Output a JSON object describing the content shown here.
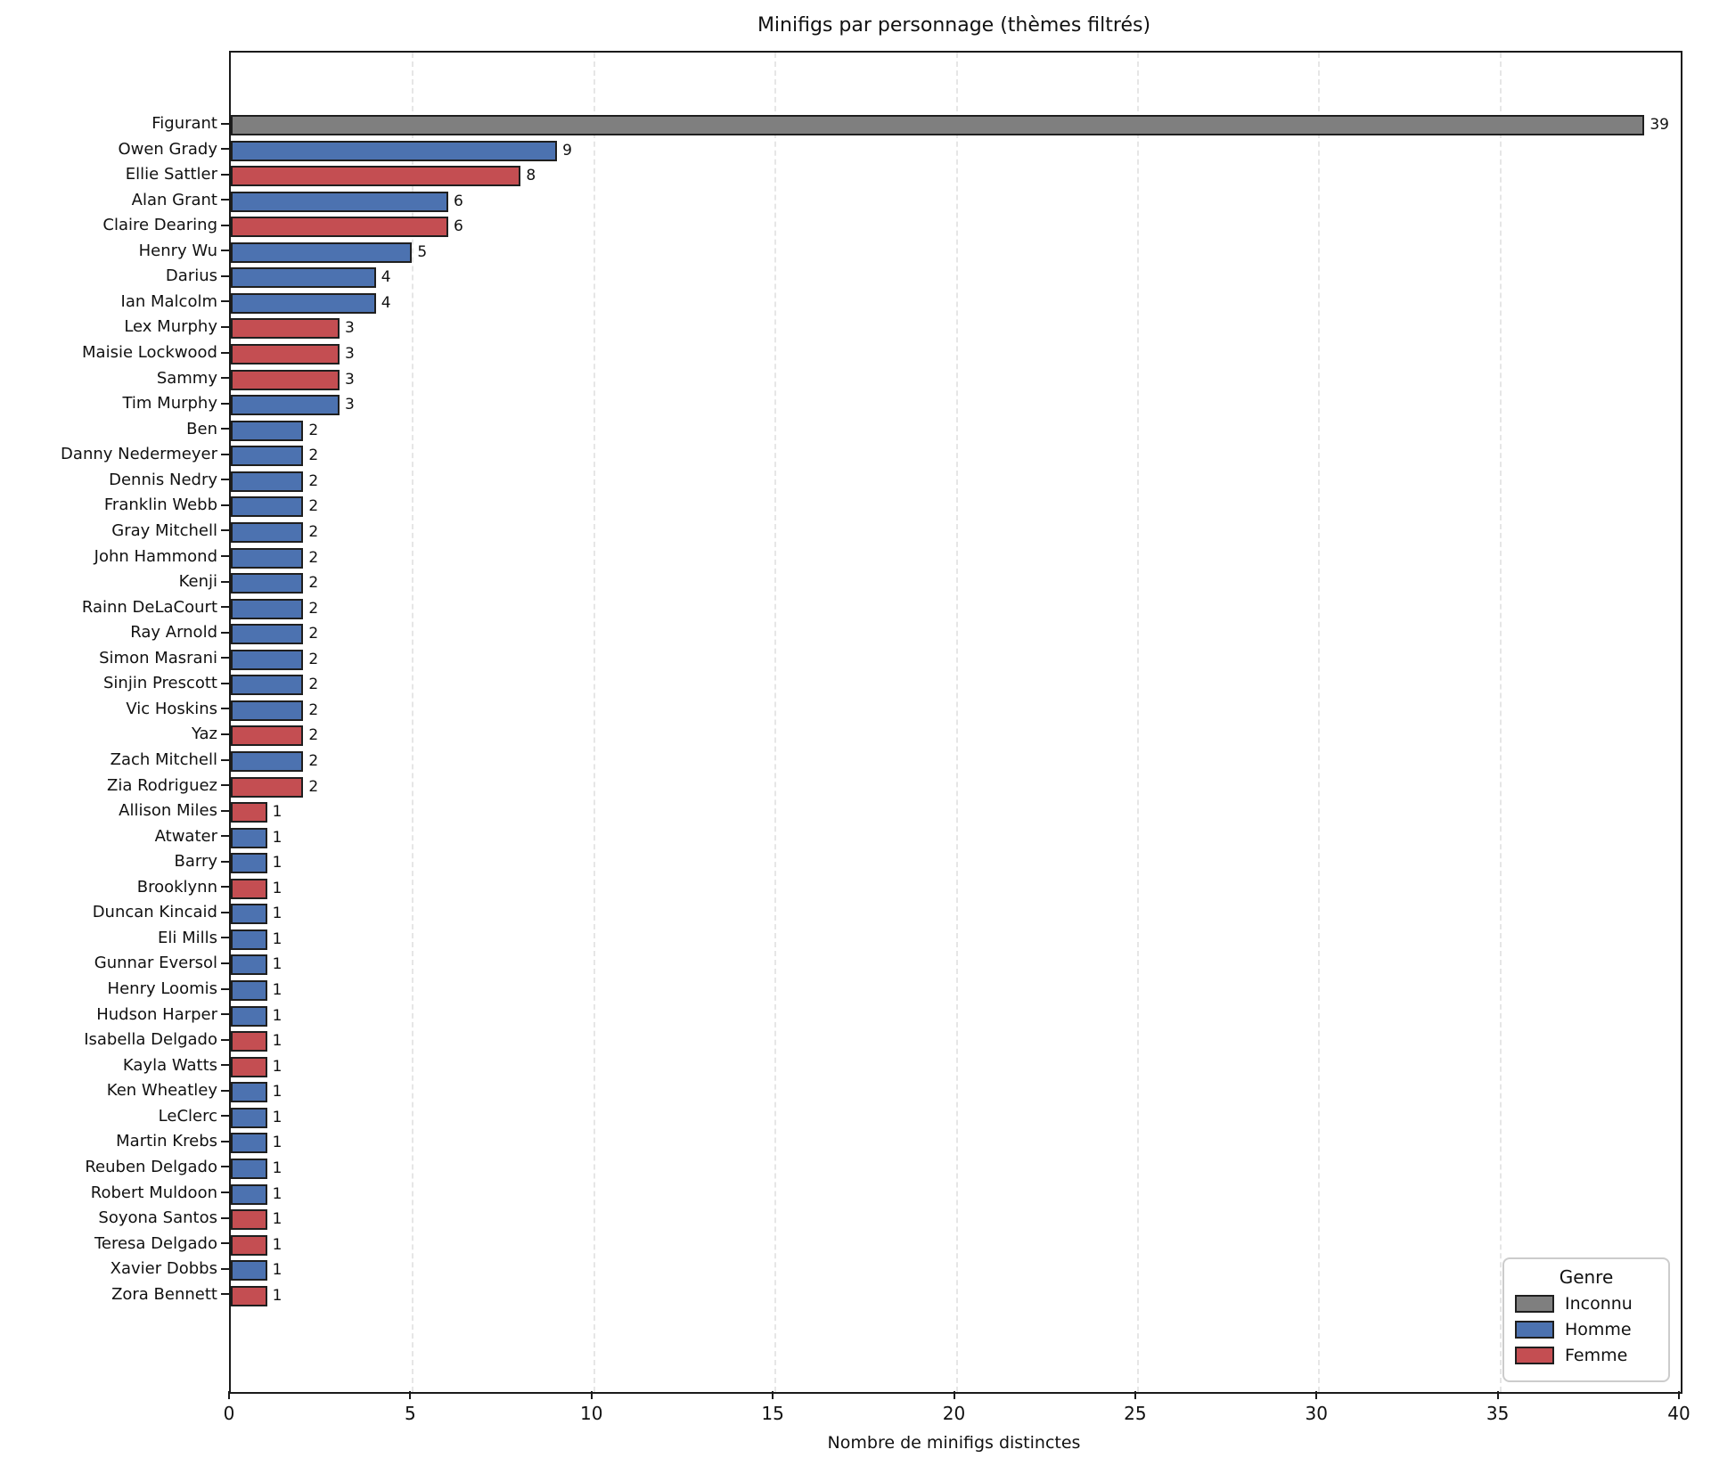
{
  "chart_data": {
    "type": "bar",
    "orientation": "horizontal",
    "title": "Minifigs par personnage (thèmes filtrés)",
    "xlabel": "Nombre de minifigs distinctes",
    "ylabel": "",
    "xlim": [
      0,
      40
    ],
    "x_ticks": [
      0,
      5,
      10,
      15,
      20,
      25,
      30,
      35,
      40
    ],
    "grid": "vertical-dashed",
    "bar_value_labels_shown": true,
    "categories": [
      "Figurant",
      "Owen Grady",
      "Ellie Sattler",
      "Alan Grant",
      "Claire Dearing",
      "Henry Wu",
      "Darius",
      "Ian Malcolm",
      "Lex Murphy",
      "Maisie Lockwood",
      "Sammy",
      "Tim Murphy",
      "Ben",
      "Danny Nedermeyer",
      "Dennis Nedry",
      "Franklin Webb",
      "Gray Mitchell",
      "John Hammond",
      "Kenji",
      "Rainn DeLaCourt",
      "Ray Arnold",
      "Simon Masrani",
      "Sinjin Prescott",
      "Vic Hoskins",
      "Yaz",
      "Zach Mitchell",
      "Zia Rodriguez",
      "Allison Miles",
      "Atwater",
      "Barry",
      "Brooklynn",
      "Duncan Kincaid",
      "Eli Mills",
      "Gunnar Eversol",
      "Henry Loomis",
      "Hudson Harper",
      "Isabella Delgado",
      "Kayla Watts",
      "Ken Wheatley",
      "LeClerc",
      "Martin Krebs",
      "Reuben Delgado",
      "Robert Muldoon",
      "Soyona Santos",
      "Teresa Delgado",
      "Xavier Dobbs",
      "Zora Bennett"
    ],
    "values": [
      39,
      9,
      8,
      6,
      6,
      5,
      4,
      4,
      3,
      3,
      3,
      3,
      2,
      2,
      2,
      2,
      2,
      2,
      2,
      2,
      2,
      2,
      2,
      2,
      2,
      2,
      2,
      1,
      1,
      1,
      1,
      1,
      1,
      1,
      1,
      1,
      1,
      1,
      1,
      1,
      1,
      1,
      1,
      1,
      1,
      1,
      1
    ],
    "genders": [
      "Inconnu",
      "Homme",
      "Femme",
      "Homme",
      "Femme",
      "Homme",
      "Homme",
      "Homme",
      "Femme",
      "Femme",
      "Femme",
      "Homme",
      "Homme",
      "Homme",
      "Homme",
      "Homme",
      "Homme",
      "Homme",
      "Homme",
      "Homme",
      "Homme",
      "Homme",
      "Homme",
      "Homme",
      "Femme",
      "Homme",
      "Femme",
      "Femme",
      "Homme",
      "Homme",
      "Femme",
      "Homme",
      "Homme",
      "Homme",
      "Homme",
      "Homme",
      "Femme",
      "Femme",
      "Homme",
      "Homme",
      "Homme",
      "Homme",
      "Homme",
      "Femme",
      "Femme",
      "Homme",
      "Femme"
    ],
    "legend": {
      "title": "Genre",
      "position": "lower right",
      "entries": [
        {
          "label": "Inconnu",
          "color": "#7f7f7f"
        },
        {
          "label": "Homme",
          "color": "#4C72B0"
        },
        {
          "label": "Femme",
          "color": "#C44E52"
        }
      ]
    },
    "colors": {
      "Inconnu": "#7f7f7f",
      "Homme": "#4C72B0",
      "Femme": "#C44E52",
      "bar_edge": "#1f1f1f",
      "grid": "#e6e6e6"
    }
  }
}
